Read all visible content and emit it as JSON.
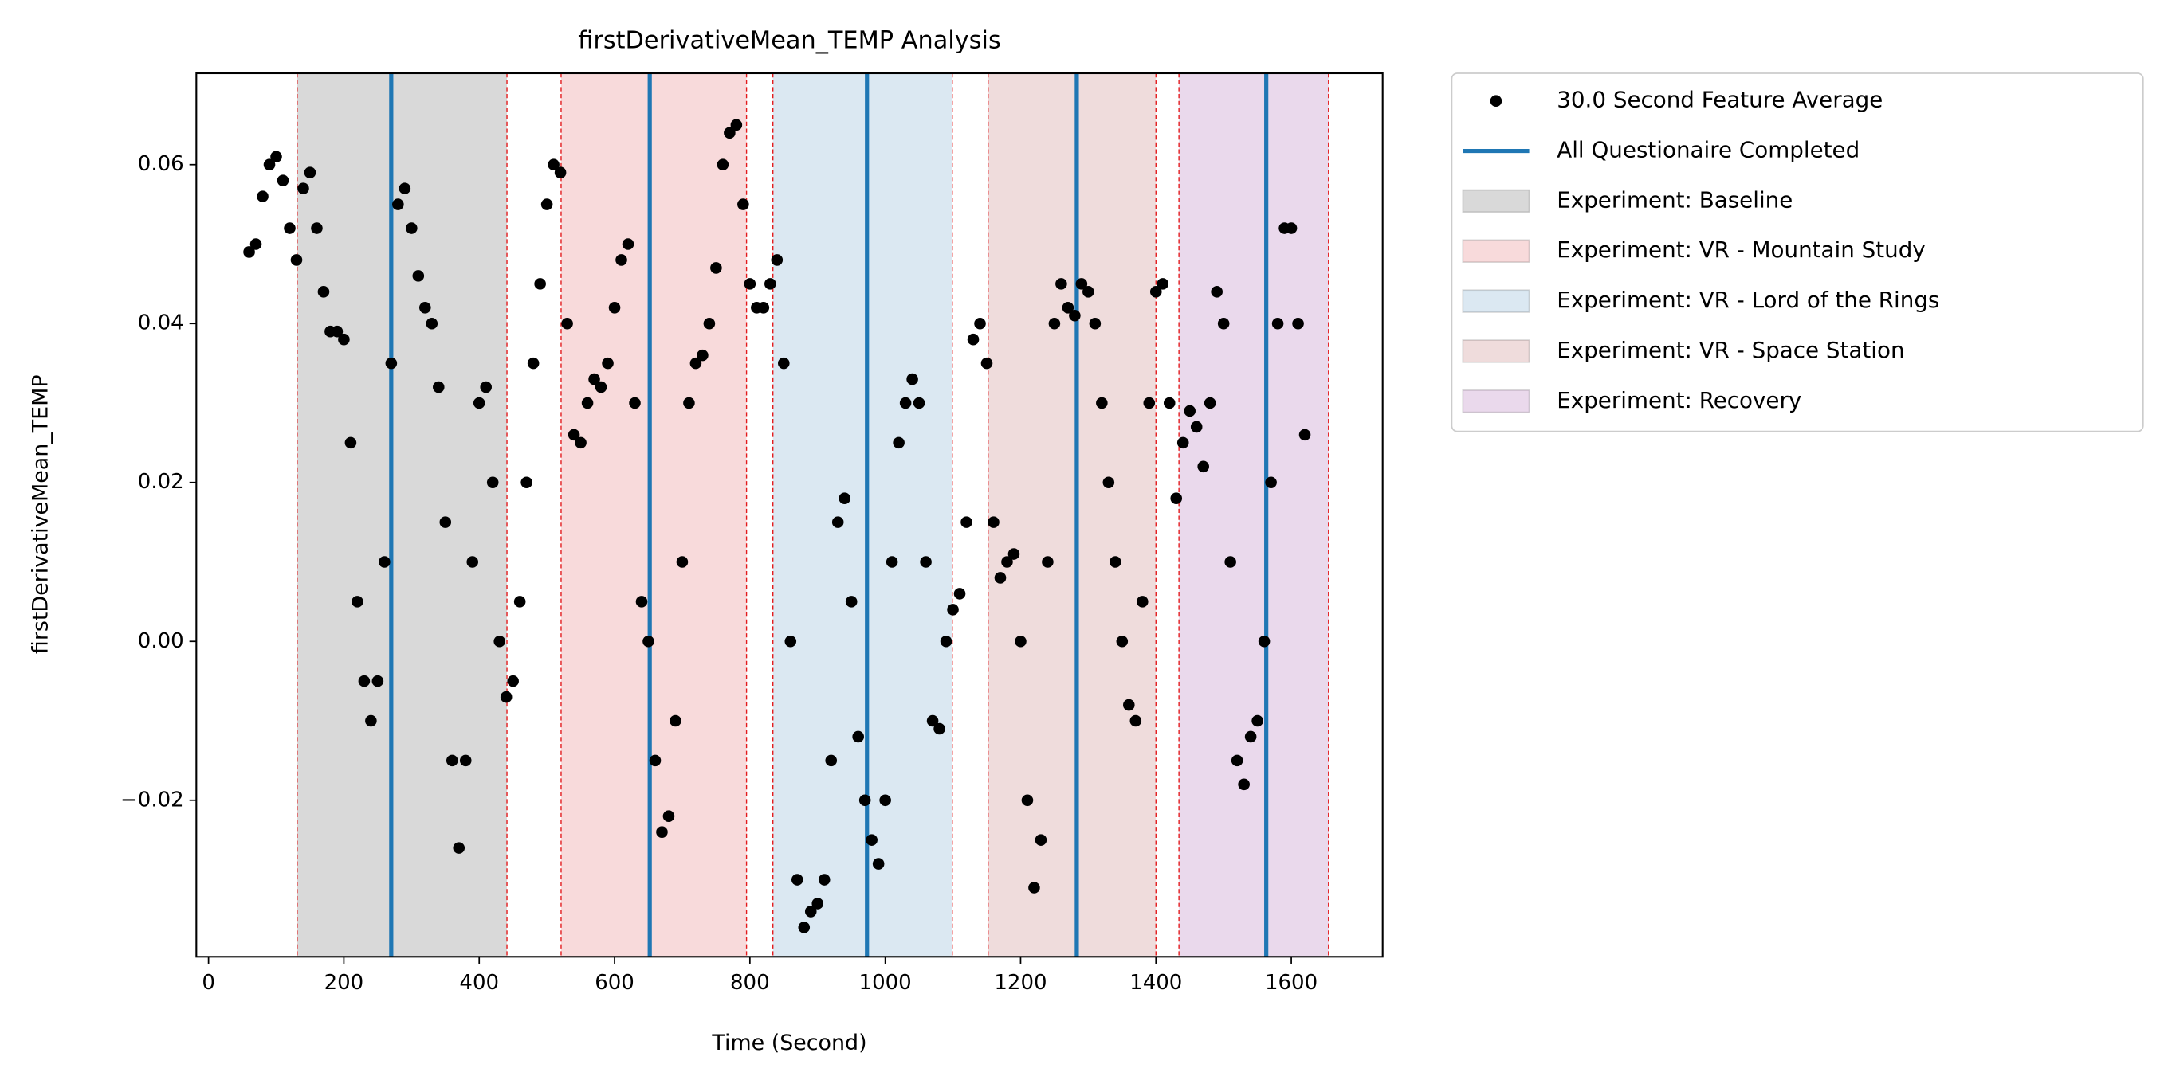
{
  "chart_data": {
    "type": "scatter",
    "title": "firstDerivativeMean_TEMP Analysis",
    "x_label": "Time (Second)",
    "y_label": "firstDerivativeMean_TEMP",
    "xlim": [
      -18,
      1735
    ],
    "ylim": [
      -0.0397,
      0.0715
    ],
    "xticks": [
      0,
      200,
      400,
      600,
      800,
      1000,
      1200,
      1400,
      1600
    ],
    "yticks": [
      {
        "value": -0.02,
        "label": "−0.02"
      },
      {
        "value": 0,
        "label": "0.00"
      },
      {
        "value": 0.02,
        "label": "0.02"
      },
      {
        "value": 0.04,
        "label": "0.04"
      },
      {
        "value": 0.06,
        "label": "0.06"
      }
    ],
    "legend": "outside-upper-right",
    "series": [
      {
        "name": "30.0 Second Feature Average",
        "color": "#000000",
        "x": [
          60,
          70,
          80,
          90,
          100,
          110,
          120,
          130,
          140,
          150,
          160,
          170,
          180,
          190,
          200,
          210,
          220,
          230,
          240,
          250,
          260,
          270,
          280,
          290,
          300,
          310,
          320,
          330,
          340,
          350,
          360,
          370,
          380,
          390,
          400,
          410,
          420,
          430,
          440,
          450,
          460,
          470,
          480,
          490,
          500,
          510,
          520,
          530,
          540,
          550,
          560,
          570,
          580,
          590,
          600,
          610,
          620,
          630,
          640,
          650,
          660,
          670,
          680,
          690,
          700,
          710,
          720,
          730,
          740,
          750,
          760,
          770,
          780,
          790,
          800,
          810,
          820,
          830,
          840,
          850,
          860,
          870,
          880,
          890,
          900,
          910,
          920,
          930,
          940,
          950,
          960,
          970,
          980,
          990,
          1000,
          1010,
          1020,
          1030,
          1040,
          1050,
          1060,
          1070,
          1080,
          1090,
          1100,
          1110,
          1120,
          1130,
          1140,
          1150,
          1160,
          1170,
          1180,
          1190,
          1200,
          1210,
          1220,
          1230,
          1240,
          1250,
          1260,
          1270,
          1280,
          1290,
          1300,
          1310,
          1320,
          1330,
          1340,
          1350,
          1360,
          1370,
          1380,
          1390,
          1400,
          1410,
          1420,
          1430,
          1440,
          1450,
          1460,
          1470,
          1480,
          1490,
          1500,
          1510,
          1520,
          1530,
          1540,
          1550,
          1560,
          1570,
          1580,
          1590,
          1600,
          1610,
          1620
        ],
        "values": [
          0.049,
          0.05,
          0.056,
          0.06,
          0.061,
          0.058,
          0.052,
          0.048,
          0.057,
          0.059,
          0.052,
          0.044,
          0.039,
          0.039,
          0.038,
          0.025,
          0.005,
          -0.005,
          -0.01,
          -0.005,
          0.01,
          0.035,
          0.055,
          0.057,
          0.052,
          0.046,
          0.042,
          0.04,
          0.032,
          0.015,
          -0.015,
          -0.026,
          -0.015,
          0.01,
          0.03,
          0.032,
          0.02,
          0.0,
          -0.007,
          -0.005,
          0.005,
          0.02,
          0.035,
          0.045,
          0.055,
          0.06,
          0.059,
          0.04,
          0.026,
          0.025,
          0.03,
          0.033,
          0.032,
          0.035,
          0.042,
          0.048,
          0.05,
          0.03,
          0.005,
          0.0,
          -0.015,
          -0.024,
          -0.022,
          -0.01,
          0.01,
          0.03,
          0.035,
          0.036,
          0.04,
          0.047,
          0.06,
          0.064,
          0.065,
          0.055,
          0.045,
          0.042,
          0.042,
          0.045,
          0.048,
          0.035,
          0.0,
          -0.03,
          -0.036,
          -0.034,
          -0.033,
          -0.03,
          -0.015,
          0.015,
          0.018,
          0.005,
          -0.012,
          -0.02,
          -0.025,
          -0.028,
          -0.02,
          0.01,
          0.025,
          0.03,
          0.033,
          0.03,
          0.01,
          -0.01,
          -0.011,
          0.0,
          0.004,
          0.006,
          0.015,
          0.038,
          0.04,
          0.035,
          0.015,
          0.008,
          0.01,
          0.011,
          0.0,
          -0.02,
          -0.031,
          -0.025,
          0.01,
          0.04,
          0.045,
          0.042,
          0.041,
          0.045,
          0.044,
          0.04,
          0.03,
          0.02,
          0.01,
          0.0,
          -0.008,
          -0.01,
          0.005,
          0.03,
          0.044,
          0.045,
          0.03,
          0.018,
          0.025,
          0.029,
          0.027,
          0.022,
          0.03,
          0.044,
          0.04,
          0.01,
          -0.015,
          -0.018,
          -0.012,
          -0.01,
          0.0,
          0.02,
          0.04,
          0.052,
          0.052,
          0.04,
          0.026
        ]
      }
    ],
    "vlines": {
      "name": "All Questionaire Completed",
      "color": "#1f77b4",
      "x": [
        270,
        652,
        973,
        1283,
        1563
      ]
    },
    "spans": [
      {
        "name": "Experiment: Baseline",
        "color": "#d9d9d9",
        "start": 131,
        "end": 441
      },
      {
        "name": "Experiment: VR - Mountain Study",
        "color": "#f8dadb",
        "start": 521,
        "end": 795
      },
      {
        "name": "Experiment: VR - Lord of the Rings",
        "color": "#dbe8f2",
        "start": 834,
        "end": 1099
      },
      {
        "name": "Experiment: VR - Space Station",
        "color": "#efdcdc",
        "start": 1152,
        "end": 1400
      },
      {
        "name": "Experiment: Recovery",
        "color": "#ead9ec",
        "start": 1434,
        "end": 1655
      }
    ],
    "span_edge_color": "#e31a1c"
  }
}
